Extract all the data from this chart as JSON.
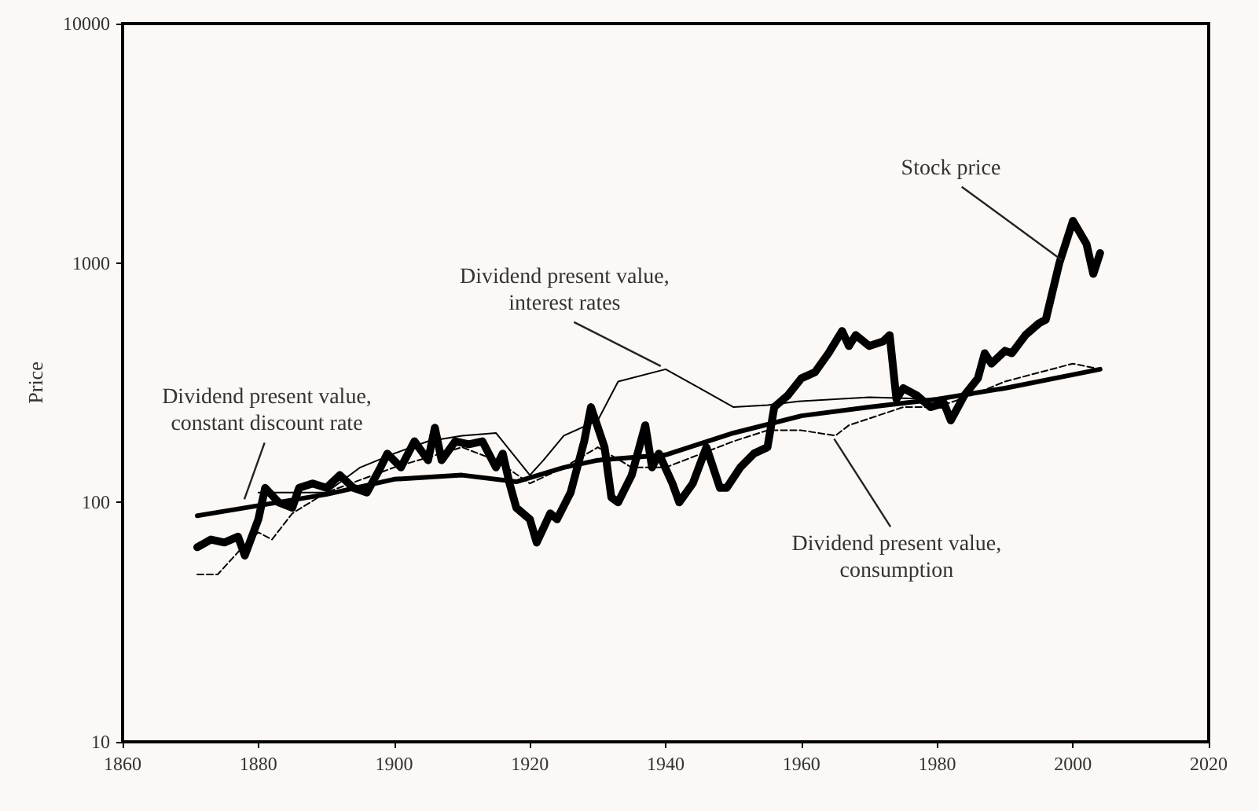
{
  "chart_data": {
    "type": "line",
    "ylabel": "Price",
    "log": "y",
    "grid": false,
    "marker": "none",
    "xlim": [
      1860,
      2020
    ],
    "xticks": [
      1860,
      1880,
      1900,
      1920,
      1940,
      1960,
      1980,
      2000,
      2020
    ],
    "ylim": [
      10,
      10000
    ],
    "yticks": [
      10,
      100,
      1000,
      10000
    ],
    "series": [
      {
        "color": "#000000",
        "line_style": "solid",
        "x": [
          1871,
          1873,
          1875,
          1877,
          1878,
          1880,
          1881,
          1883,
          1885,
          1886,
          1888,
          1890,
          1892,
          1894,
          1896,
          1898,
          1899,
          1901,
          1903,
          1905,
          1906,
          1907,
          1909,
          1911,
          1913,
          1915,
          1916,
          1917,
          1918,
          1920,
          1921,
          1923,
          1924,
          1926,
          1928,
          1929,
          1931,
          1932,
          1933,
          1935,
          1937,
          1938,
          1939,
          1941,
          1942,
          1944,
          1946,
          1948,
          1949,
          1951,
          1953,
          1955,
          1956,
          1958,
          1960,
          1962,
          1964,
          1966,
          1967,
          1968,
          1970,
          1972,
          1973,
          1974,
          1975,
          1977,
          1979,
          1981,
          1982,
          1984,
          1986,
          1987,
          1988,
          1990,
          1991,
          1993,
          1995,
          1996,
          1998,
          2000,
          2002,
          2003,
          2004
        ],
        "values": [
          65,
          70,
          68,
          72,
          60,
          85,
          115,
          100,
          95,
          115,
          120,
          115,
          130,
          115,
          110,
          140,
          160,
          140,
          180,
          150,
          205,
          150,
          180,
          175,
          180,
          140,
          160,
          120,
          95,
          85,
          68,
          90,
          85,
          110,
          180,
          250,
          170,
          105,
          100,
          130,
          210,
          140,
          160,
          120,
          100,
          120,
          170,
          115,
          115,
          140,
          160,
          170,
          250,
          280,
          330,
          350,
          420,
          520,
          450,
          500,
          450,
          470,
          500,
          270,
          300,
          280,
          250,
          260,
          220,
          280,
          330,
          420,
          380,
          430,
          420,
          500,
          560,
          580,
          1000,
          1500,
          1200,
          900,
          1100
        ]
      },
      {
        "color": "#000000",
        "line_style": "solid",
        "x": [
          1871,
          1880,
          1890,
          1900,
          1910,
          1918,
          1925,
          1930,
          1940,
          1950,
          1960,
          1970,
          1980,
          1990,
          2004
        ],
        "values": [
          88,
          97,
          108,
          125,
          130,
          122,
          140,
          150,
          158,
          195,
          230,
          250,
          270,
          300,
          360
        ]
      },
      {
        "color": "#000000",
        "line_style": "solid",
        "x": [
          1880,
          1890,
          1895,
          1900,
          1905,
          1910,
          1915,
          1920,
          1922,
          1925,
          1930,
          1933,
          1940,
          1945,
          1950,
          1955,
          1960,
          1970,
          1980,
          1990,
          2004
        ],
        "values": [
          110,
          110,
          140,
          160,
          180,
          190,
          195,
          130,
          150,
          190,
          220,
          320,
          360,
          300,
          250,
          255,
          265,
          275,
          270,
          300,
          360
        ]
      },
      {
        "color": "#000000",
        "line_style": "dashed",
        "x": [
          1871,
          1874,
          1877,
          1880,
          1882,
          1885,
          1890,
          1900,
          1910,
          1915,
          1920,
          1925,
          1930,
          1935,
          1940,
          1950,
          1955,
          1960,
          1965,
          1967,
          1975,
          1980,
          1985,
          1990,
          2000,
          2004
        ],
        "values": [
          50,
          50,
          62,
          75,
          70,
          90,
          110,
          140,
          170,
          150,
          120,
          140,
          170,
          140,
          140,
          180,
          200,
          200,
          190,
          210,
          250,
          250,
          280,
          320,
          380,
          360
        ]
      }
    ],
    "annotations": [
      {
        "text": "Dividend present value,\nconstant discount rate",
        "x": 1878,
        "y": 100
      },
      {
        "text": "Dividend present value,\ninterest rates",
        "x": 1939,
        "y": 360
      },
      {
        "text": "Stock price",
        "x": 1998,
        "y": 1000
      },
      {
        "text": "Dividend present value,\nconsumption",
        "x": 1965,
        "y": 190
      }
    ]
  }
}
